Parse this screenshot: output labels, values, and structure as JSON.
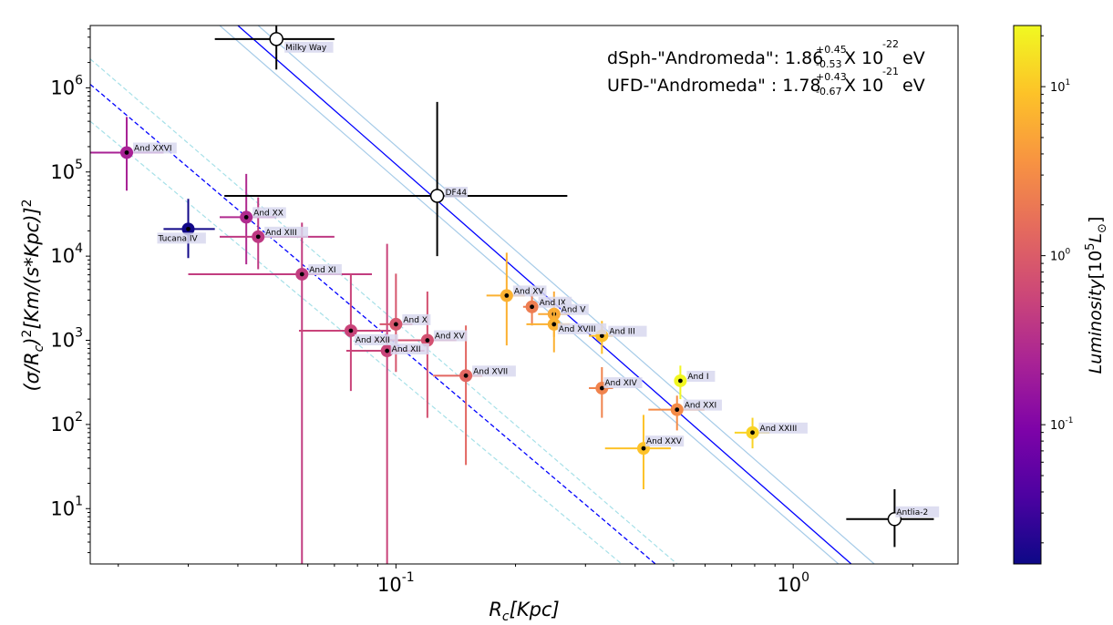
{
  "chart_data": {
    "type": "scatter",
    "x_scale": "log",
    "y_scale": "log",
    "xlim": [
      0.017,
      2.6
    ],
    "ylim": [
      2.2,
      5500000
    ],
    "xlabel": "R_c[Kpc]",
    "ylabel": "(σ/R_c)^2[Km/(s*Kpc)]^2",
    "x_ticks": [
      {
        "value": 0.1,
        "label": "10^-1"
      },
      {
        "value": 1,
        "label": "10^0"
      }
    ],
    "y_ticks": [
      {
        "value": 10,
        "label": "10^1"
      },
      {
        "value": 100,
        "label": "10^2"
      },
      {
        "value": 1000,
        "label": "10^3"
      },
      {
        "value": 10000,
        "label": "10^4"
      },
      {
        "value": 100000,
        "label": "10^5"
      },
      {
        "value": 1000000,
        "label": "10^6"
      }
    ],
    "annotations": [
      {
        "prefix": "dSph-\"Andromeda\": 1.86",
        "sup": "+0.45",
        "sub": "-0.53",
        "mid": " X 10",
        "exp": "-22",
        "unit": "eV"
      },
      {
        "prefix": "UFD-\"Andromeda\" : 1.78",
        "sup": "+0.43",
        "sub": "-0.67",
        "mid": " X 10",
        "exp": "-21",
        "unit": "eV"
      }
    ],
    "colorbar": {
      "label": "Luminosity[10^5 L_⊙]",
      "scale": "log",
      "range": [
        0.015,
        23
      ],
      "ticks": [
        {
          "value": 0.1,
          "label": "10^-1"
        },
        {
          "value": 1,
          "label": "10^0"
        },
        {
          "value": 10,
          "label": "10^1"
        }
      ],
      "colormap": "plasma"
    },
    "fit_lines": [
      {
        "name": "dSph fit",
        "style": "solid",
        "color": "#0000ff",
        "slope": -2,
        "points": [
          [
            0.04,
            5500000
          ],
          [
            1.4,
            2.2
          ]
        ]
      },
      {
        "name": "dSph upper",
        "style": "solid",
        "color": "#a6cbe8",
        "slope": -2,
        "points": [
          [
            0.045,
            5500000
          ],
          [
            1.6,
            2.2
          ]
        ]
      },
      {
        "name": "dSph lower",
        "style": "solid",
        "color": "#a6cbe8",
        "slope": -2,
        "points": [
          [
            0.036,
            5500000
          ],
          [
            1.3,
            2.2
          ]
        ]
      },
      {
        "name": "UFD fit",
        "style": "dashed",
        "color": "#0000ff",
        "slope": -2,
        "points": [
          [
            0.017,
            1100000
          ],
          [
            0.45,
            2.2
          ]
        ]
      },
      {
        "name": "UFD upper",
        "style": "dashed",
        "color": "#a6e0e8",
        "slope": -2,
        "points": [
          [
            0.017,
            2200000
          ],
          [
            0.51,
            2.2
          ]
        ]
      },
      {
        "name": "UFD lower",
        "style": "dashed",
        "color": "#a6e0e8",
        "slope": -2,
        "points": [
          [
            0.017,
            400000
          ],
          [
            0.37,
            2.2
          ]
        ]
      }
    ],
    "series": [
      {
        "name": "And XXVI",
        "x": 0.021,
        "y": 170000,
        "xerr": [
          0.017,
          0.026
        ],
        "yerr": [
          60000,
          450000
        ],
        "lum": 0.23
      },
      {
        "name": "Tucana IV",
        "x": 0.03,
        "y": 21000,
        "xerr": [
          0.026,
          0.035
        ],
        "yerr": [
          9500,
          48000
        ],
        "lum": 0.016
      },
      {
        "name": "And XX",
        "x": 0.042,
        "y": 29000,
        "xerr": [
          0.036,
          0.05
        ],
        "yerr": [
          8000,
          95000
        ],
        "lum": 0.28
      },
      {
        "name": "And XIII",
        "x": 0.045,
        "y": 17000,
        "xerr": [
          0.036,
          0.07
        ],
        "yerr": [
          7000,
          50000
        ],
        "lum": 0.41
      },
      {
        "name": "And XI",
        "x": 0.058,
        "y": 6100,
        "xerr": [
          0.03,
          0.087
        ],
        "yerr": [
          2.2,
          25000
        ],
        "lum": 0.45
      },
      {
        "name": "And XXII",
        "x": 0.077,
        "y": 1300,
        "xerr": [
          0.057,
          0.097
        ],
        "yerr": [
          250,
          6200
        ],
        "lum": 0.55
      },
      {
        "name": "And XII",
        "x": 0.095,
        "y": 750,
        "xerr": [
          0.075,
          0.118
        ],
        "yerr": [
          2.2,
          14000
        ],
        "lum": 0.55
      },
      {
        "name": "And X",
        "x": 0.1,
        "y": 1550,
        "xerr": [
          0.091,
          0.11
        ],
        "yerr": [
          420,
          6200
        ],
        "lum": 0.85
      },
      {
        "name": "And XV",
        "x": 0.12,
        "y": 1000,
        "xerr": [
          0.088,
          0.142
        ],
        "yerr": [
          120,
          3800
        ],
        "lum": 0.75
      },
      {
        "name": "And XVII",
        "x": 0.15,
        "y": 380,
        "xerr": [
          0.124,
          0.165
        ],
        "yerr": [
          33,
          1500
        ],
        "lum": 1.3
      },
      {
        "name": "And XV",
        "x": 0.19,
        "y": 3400,
        "xerr": [
          0.169,
          0.211
        ],
        "yerr": [
          870,
          11000
        ],
        "lum": 6.5
      },
      {
        "name": "And IX",
        "x": 0.22,
        "y": 2500,
        "xerr": [
          0.209,
          0.228
        ],
        "yerr": [
          1500,
          3600
        ],
        "lum": 2.2
      },
      {
        "name": "And V",
        "x": 0.25,
        "y": 2050,
        "xerr": [
          0.228,
          0.274
        ],
        "yerr": [
          1100,
          3800
        ],
        "lum": 5.5
      },
      {
        "name": "And XVIII",
        "x": 0.25,
        "y": 1550,
        "xerr": [
          0.213,
          0.274
        ],
        "yerr": [
          720,
          3000
        ],
        "lum": 6.5
      },
      {
        "name": "And III",
        "x": 0.33,
        "y": 1130,
        "xerr": [
          0.306,
          0.352
        ],
        "yerr": [
          690,
          1700
        ],
        "lum": 8.5
      },
      {
        "name": "And XIV",
        "x": 0.33,
        "y": 270,
        "xerr": [
          0.306,
          0.352
        ],
        "yerr": [
          120,
          480
        ],
        "lum": 2.5
      },
      {
        "name": "And XXV",
        "x": 0.42,
        "y": 52,
        "xerr": [
          0.336,
          0.492
        ],
        "yerr": [
          17,
          130
        ],
        "lum": 9.0
      },
      {
        "name": "And I",
        "x": 0.52,
        "y": 330,
        "xerr": [
          0.51,
          0.53
        ],
        "yerr": [
          200,
          500
        ],
        "lum": 22
      },
      {
        "name": "And XXI",
        "x": 0.51,
        "y": 150,
        "xerr": [
          0.432,
          0.598
        ],
        "yerr": [
          85,
          220
        ],
        "lum": 3.0
      },
      {
        "name": "And XXIII",
        "x": 0.79,
        "y": 80,
        "xerr": [
          0.712,
          0.872
        ],
        "yerr": [
          52,
          120
        ],
        "lum": 12
      },
      {
        "name": "Milky Way",
        "x": 0.05,
        "y": 3800000,
        "xerr": [
          0.035,
          0.07
        ],
        "yerr": [
          1650000,
          5500000
        ],
        "lum": null
      },
      {
        "name": "DF44",
        "x": 0.127,
        "y": 52000,
        "xerr": [
          0.037,
          0.27
        ],
        "yerr": [
          10000,
          680000
        ],
        "lum": null
      },
      {
        "name": "Antlia-2",
        "x": 1.8,
        "y": 7.5,
        "xerr": [
          1.36,
          2.26
        ],
        "yerr": [
          3.5,
          17
        ],
        "lum": null
      }
    ]
  }
}
